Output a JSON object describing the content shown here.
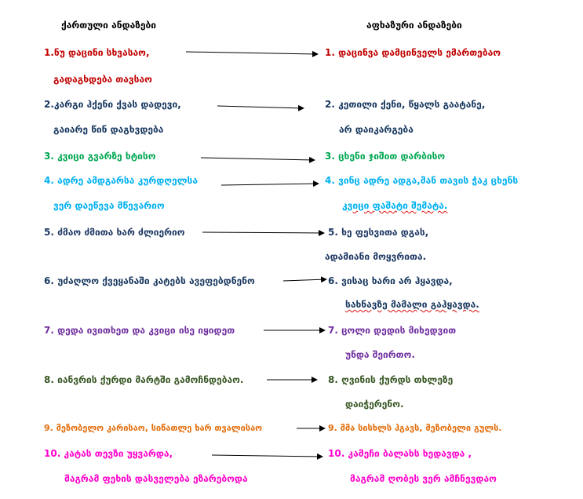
{
  "headers": {
    "left": "ქართული ანდაზები",
    "right": "აფხაზური ანდაზები"
  },
  "colors": {
    "red": "#c00000",
    "navy": "#17375e",
    "green": "#00a651",
    "cyan": "#00b0f0",
    "blue": "#1f3864",
    "purple": "#7030a0",
    "olive": "#375623",
    "orange": "#e36c09",
    "magenta": "#ff00cc"
  },
  "rows": [
    {
      "left": [
        "1.ნუ დაცინი სხვასაო,",
        "გადაგხდება თავსაო"
      ],
      "right": [
        "1. დაცინვა დამცინველს ემართებაო"
      ]
    },
    {
      "left": [
        "2.კარგი ჰქენი ქვას დადევი,",
        "გაიარე წინ დაგხვდება"
      ],
      "right": [
        "2. კეთილი ქენი, წყალს გაატანე,",
        "არ დაიკარგება"
      ]
    },
    {
      "left": [
        "3. კვიცი გვარზე ხტისო"
      ],
      "right": [
        "3. ცხენი ჯიშით დარბისო"
      ]
    },
    {
      "left": [
        "4. ადრე ამდგარსა კურდღელსა",
        "ვერ დაეწევა მწევარიო"
      ],
      "right": [
        "4. ვინც ადრე ადგა,მან თავის ჭაკ ცხენს",
        "კვიცი ფაშატი შემატა."
      ]
    },
    {
      "left": [
        "5. ძმაო ძმითა ხარ ძლიერიო"
      ],
      "right": [
        "5. ხე ფესვითა დგას,",
        "ადამიანი მოყვრითა."
      ]
    },
    {
      "left": [
        "6. უძაღლო ქვეყანაში კატებს ავეფებდნენო"
      ],
      "right": [
        "6. ვისაც ხარი არ ჰყავდა,",
        "სახნავზე მამალი გაჰყავდა."
      ]
    },
    {
      "left": [
        "7. დედა ივითხეთ და კვიცი ისე იყიდეთ"
      ],
      "right": [
        "7. ცოლი დედის მიხედვით",
        "უნდა შეირთო."
      ]
    },
    {
      "left": [
        "8. იანვრის ქურდი მარტში გამოჩნდებაო."
      ],
      "right": [
        "8. ღვინის ქურდს თხლეზე",
        "დაიჭერენო."
      ]
    },
    {
      "left": [
        "9. მეზობელო კარისაო, სიწათლე ხარ თვალისაო"
      ],
      "right": [
        "9. მმა სისხლს ჰგავს, მეზობელი გულს."
      ]
    },
    {
      "left": [
        "10.  კატას თევზი უყვარდა,",
        "მაგრამ ფეხის დასველება ეზარებოდა"
      ],
      "right": [
        "10. კამეჩი ბალახს ხედავდა ,",
        "მაგრამ ღობეს ვერ ამჩნევდაო"
      ]
    }
  ]
}
